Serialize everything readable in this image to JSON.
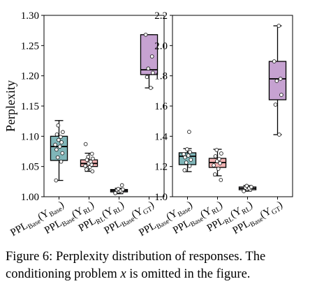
{
  "chart_data": [
    {
      "type": "box",
      "ylabel": "Perplexity",
      "ylim": [
        1.0,
        1.3
      ],
      "yticks": [
        "1.00",
        "1.05",
        "1.10",
        "1.15",
        "1.20",
        "1.25",
        "1.30"
      ],
      "categories": [
        {
          "main": "PPL",
          "sub": "Base",
          "arg": "Y",
          "argsub": "Base"
        },
        {
          "main": "PPL",
          "sub": "Base",
          "arg": "Y",
          "argsub": "RL"
        },
        {
          "main": "PPL",
          "sub": "RL",
          "arg": "Y",
          "argsub": "RL"
        },
        {
          "main": "PPL",
          "sub": "Base",
          "arg": "Y",
          "argsub": "GT"
        }
      ],
      "boxes": [
        {
          "color": "#80b6b9",
          "whisker_low": 1.027,
          "q1": 1.06,
          "median": 1.083,
          "q3": 1.1,
          "whisker_high": 1.126,
          "points": [
            1.027,
            1.058,
            1.065,
            1.072,
            1.078,
            1.083,
            1.086,
            1.09,
            1.094,
            1.099,
            1.103,
            1.107,
            1.118
          ]
        },
        {
          "color": "#f3b4b4",
          "whisker_low": 1.042,
          "q1": 1.05,
          "median": 1.055,
          "q3": 1.061,
          "whisker_high": 1.072,
          "points": [
            1.042,
            1.045,
            1.049,
            1.051,
            1.053,
            1.055,
            1.058,
            1.061,
            1.063,
            1.066,
            1.071,
            1.087
          ]
        },
        {
          "color": "#e3e0e8",
          "whisker_low": 1.005,
          "q1": 1.008,
          "median": 1.01,
          "q3": 1.012,
          "whisker_high": 1.014,
          "points": [
            1.006,
            1.008,
            1.009,
            1.01,
            1.011,
            1.012,
            1.013,
            1.019
          ]
        },
        {
          "color": "#c6a2d1",
          "whisker_low": 1.18,
          "q1": 1.202,
          "median": 1.21,
          "q3": 1.268,
          "whisker_high": 1.268,
          "points": [
            1.18,
            1.198,
            1.205,
            1.212,
            1.232,
            1.268
          ]
        }
      ]
    },
    {
      "type": "box",
      "ylabel": "",
      "ylim": [
        1.0,
        2.3
      ],
      "yticks": [
        "1.0",
        "1.2",
        "1.4",
        "1.6",
        "1.8",
        "2.0",
        "2.2"
      ],
      "categories": [
        {
          "main": "PPL",
          "sub": "Base",
          "arg": "Y",
          "argsub": "Base"
        },
        {
          "main": "PPL",
          "sub": "Base",
          "arg": "Y",
          "argsub": "RL"
        },
        {
          "main": "PPL",
          "sub": "RL",
          "arg": "Y",
          "argsub": "RL"
        },
        {
          "main": "PPL",
          "sub": "Base",
          "arg": "Y",
          "argsub": "GT"
        }
      ],
      "boxes": [
        {
          "color": "#80b6b9",
          "whisker_low": 1.18,
          "q1": 1.23,
          "median": 1.29,
          "q3": 1.315,
          "whisker_high": 1.345,
          "points": [
            1.19,
            1.22,
            1.245,
            1.265,
            1.282,
            1.295,
            1.305,
            1.32,
            1.34,
            1.465
          ]
        },
        {
          "color": "#f3b4b4",
          "whisker_low": 1.15,
          "q1": 1.21,
          "median": 1.245,
          "q3": 1.275,
          "whisker_high": 1.34,
          "points": [
            1.12,
            1.16,
            1.2,
            1.225,
            1.24,
            1.255,
            1.27,
            1.29,
            1.31,
            1.335
          ]
        },
        {
          "color": "#e3e0e8",
          "whisker_low": 1.04,
          "q1": 1.05,
          "median": 1.06,
          "q3": 1.07,
          "whisker_high": 1.08,
          "points": [
            1.04,
            1.05,
            1.055,
            1.06,
            1.065,
            1.07,
            1.078
          ]
        },
        {
          "color": "#c6a2d1",
          "whisker_low": 1.445,
          "q1": 1.695,
          "median": 1.845,
          "q3": 1.97,
          "whisker_high": 2.225,
          "points": [
            1.445,
            1.66,
            1.73,
            1.83,
            1.845,
            1.97,
            2.225
          ]
        }
      ]
    }
  ],
  "caption": {
    "line1_prefix": "Figure 6: Perplexity distribution of responses. The",
    "line2_before_var": "conditioning problem ",
    "line2_var": "x",
    "line2_after_var": " is omitted in the figure."
  }
}
